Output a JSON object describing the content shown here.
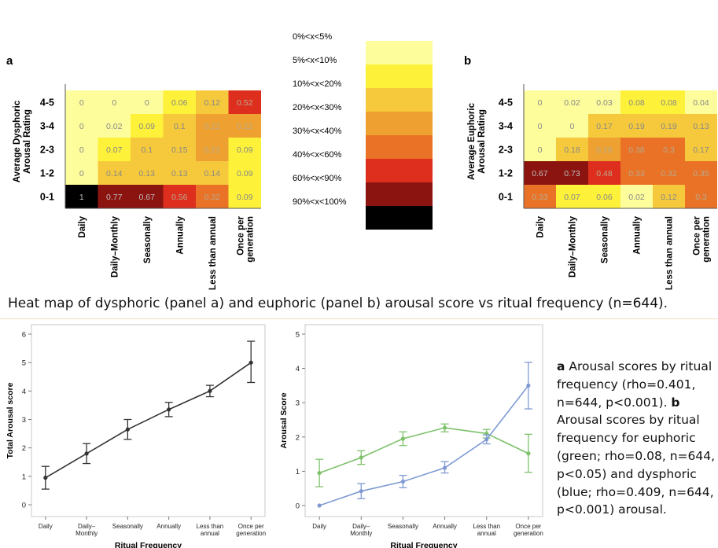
{
  "chart_data": [
    {
      "type": "heatmap",
      "panel_label": "a",
      "ylabel": "Average Dysphoric Arousal Rating",
      "rows": [
        "4-5",
        "3-4",
        "2-3",
        "1-2",
        "0-1"
      ],
      "columns": [
        "Daily",
        "Daily–Monthly",
        "Seasonally",
        "Annually",
        "Less than annual",
        "Once per generation"
      ],
      "cell_labels": [
        [
          "0",
          "0",
          "0",
          "0.06",
          "0.12",
          "0.52"
        ],
        [
          "0",
          "0.02",
          "0.09",
          "0.1",
          "0.21",
          "0.22"
        ],
        [
          "0",
          "0.07",
          "0.1",
          "0.15",
          "0.21",
          "0.09"
        ],
        [
          "0",
          "0.14",
          "0.13",
          "0.13",
          "0.14",
          "0.09"
        ],
        [
          "1",
          "0.77",
          "0.67",
          "0.56",
          "0.32",
          "0.09"
        ]
      ],
      "values": [
        [
          0,
          0,
          0,
          0.06,
          0.12,
          0.52
        ],
        [
          0,
          0.02,
          0.09,
          0.1,
          0.21,
          0.22
        ],
        [
          0,
          0.07,
          0.1,
          0.15,
          0.21,
          0.09
        ],
        [
          0,
          0.14,
          0.13,
          0.13,
          0.14,
          0.09
        ],
        [
          1,
          0.77,
          0.67,
          0.56,
          0.32,
          0.09
        ]
      ]
    },
    {
      "type": "heatmap",
      "panel_label": "b",
      "ylabel": "Average Euphoric Arousal Rating",
      "rows": [
        "4-5",
        "3-4",
        "2-3",
        "1-2",
        "0-1"
      ],
      "columns": [
        "Daily",
        "Daily–Monthly",
        "Seasonally",
        "Annually",
        "Less than annual",
        "Once per generation"
      ],
      "cell_labels": [
        [
          "0",
          "0.02",
          "0.03",
          "0.08",
          "0.08",
          "0.04"
        ],
        [
          "0",
          "0",
          "0.17",
          "0.19",
          "0.19",
          "0.13"
        ],
        [
          "0",
          "0.18",
          "0.26",
          "0.38",
          "0.3",
          "0.17"
        ],
        [
          "0.67",
          "0.73",
          "0.48",
          "0.33",
          "0.32",
          "0.35"
        ],
        [
          "0.33",
          "0.07",
          "0.06",
          "0.02",
          "0.12",
          "0.3"
        ]
      ],
      "values": [
        [
          0,
          0.02,
          0.03,
          0.08,
          0.08,
          0.04
        ],
        [
          0,
          0,
          0.17,
          0.19,
          0.19,
          0.13
        ],
        [
          0,
          0.18,
          0.26,
          0.38,
          0.3,
          0.17
        ],
        [
          0.67,
          0.73,
          0.48,
          0.33,
          0.32,
          0.35
        ],
        [
          0.33,
          0.07,
          0.06,
          0.02,
          0.12,
          0.3
        ]
      ]
    },
    {
      "type": "line",
      "categories": [
        "Daily",
        "Daily–\nMonthly",
        "Seasonally",
        "Annually",
        "Less than\nannual",
        "Once per\ngeneration"
      ],
      "xlabel": "Ritual Frequency",
      "ylabel": "Total Arousal score",
      "ylim": [
        0,
        6
      ],
      "yticks": [
        0,
        1,
        2,
        3,
        4,
        5,
        6
      ],
      "series": [
        {
          "values": [
            0.95,
            1.8,
            2.65,
            3.35,
            4.0,
            5.0
          ],
          "error_low": [
            0.55,
            1.45,
            2.3,
            3.1,
            3.8,
            4.3
          ],
          "error_high": [
            1.35,
            2.15,
            3.0,
            3.6,
            4.2,
            5.75
          ],
          "color": "#333333"
        }
      ]
    },
    {
      "type": "line",
      "categories": [
        "Daily",
        "Daily–\nMonthly",
        "Seasonally",
        "Annually",
        "Less than\nannual",
        "Once per\ngeneration"
      ],
      "xlabel": "Ritual Frequency",
      "ylabel": "Arousal Score",
      "ylim": [
        0,
        5
      ],
      "yticks": [
        0,
        1,
        2,
        3,
        4,
        5
      ],
      "series": [
        {
          "color": "#7dc26b",
          "values": [
            0.95,
            1.4,
            1.95,
            2.27,
            2.1,
            1.52
          ],
          "error_low": [
            0.55,
            1.2,
            1.75,
            2.15,
            1.97,
            0.97
          ],
          "error_high": [
            1.35,
            1.6,
            2.15,
            2.38,
            2.22,
            2.08
          ]
        },
        {
          "color": "#7f9ad3",
          "values": [
            0.0,
            0.42,
            0.7,
            1.1,
            1.93,
            3.5
          ],
          "error_low": [
            0.0,
            0.2,
            0.52,
            0.95,
            1.8,
            2.82
          ],
          "error_high": [
            0.0,
            0.64,
            0.88,
            1.28,
            2.06,
            4.18
          ]
        }
      ]
    }
  ],
  "legend": {
    "labels": [
      "0%<x<5%",
      "5%<x<10%",
      "10%<x<20%",
      "20%<x<30%",
      "30%<x<40%",
      "40%<x<60%",
      "60%<x<90%",
      "90%<x<100%"
    ],
    "colors": [
      "#fdfd9c",
      "#fdf13a",
      "#f6c93c",
      "#eea130",
      "#e97227",
      "#de2f1e",
      "#8c1410",
      "#000000"
    ]
  },
  "caption": "Heat map of dysphoric (panel a) and euphoric (panel b) arousal score vs ritual frequency (n=644).",
  "side_text": {
    "a_label": "a",
    "a_text": " Arousal scores by ritual frequency (rho=0.401, n=644, p<0.001). ",
    "b_label": "b",
    "b_text": " Arousal scores by ritual frequency for euphoric (green; rho=0.08, n=644, p<0.05) and dysphoric (blue; rho=0.409, n=644, p<0.001) arousal."
  }
}
